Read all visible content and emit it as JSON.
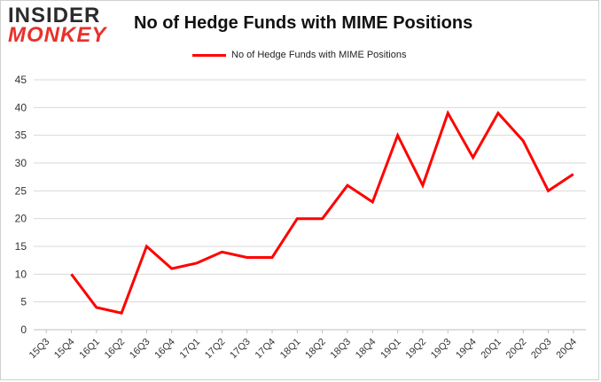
{
  "brand": {
    "logo_line1": "INSIDER",
    "logo_line2": "MONKEY"
  },
  "chart_data": {
    "type": "line",
    "title": "No of Hedge Funds with MIME Positions",
    "xlabel": "",
    "ylabel": "",
    "categories": [
      "15Q3",
      "15Q4",
      "16Q1",
      "16Q2",
      "16Q3",
      "16Q4",
      "17Q1",
      "17Q2",
      "17Q3",
      "17Q4",
      "18Q1",
      "18Q2",
      "18Q3",
      "18Q4",
      "19Q1",
      "19Q2",
      "19Q3",
      "19Q4",
      "20Q1",
      "20Q2",
      "20Q3",
      "20Q4"
    ],
    "series": [
      {
        "name": "No of Hedge Funds with MIME Positions",
        "color": "#ff0000",
        "values": [
          null,
          10,
          4,
          3,
          15,
          11,
          12,
          14,
          13,
          13,
          20,
          20,
          26,
          23,
          35,
          26,
          39,
          31,
          39,
          34,
          25,
          28
        ]
      }
    ],
    "ylim": [
      0,
      45
    ],
    "yticks": [
      0,
      5,
      10,
      15,
      20,
      25,
      30,
      35,
      40,
      45
    ],
    "grid": true,
    "legend_position": "top-center"
  }
}
